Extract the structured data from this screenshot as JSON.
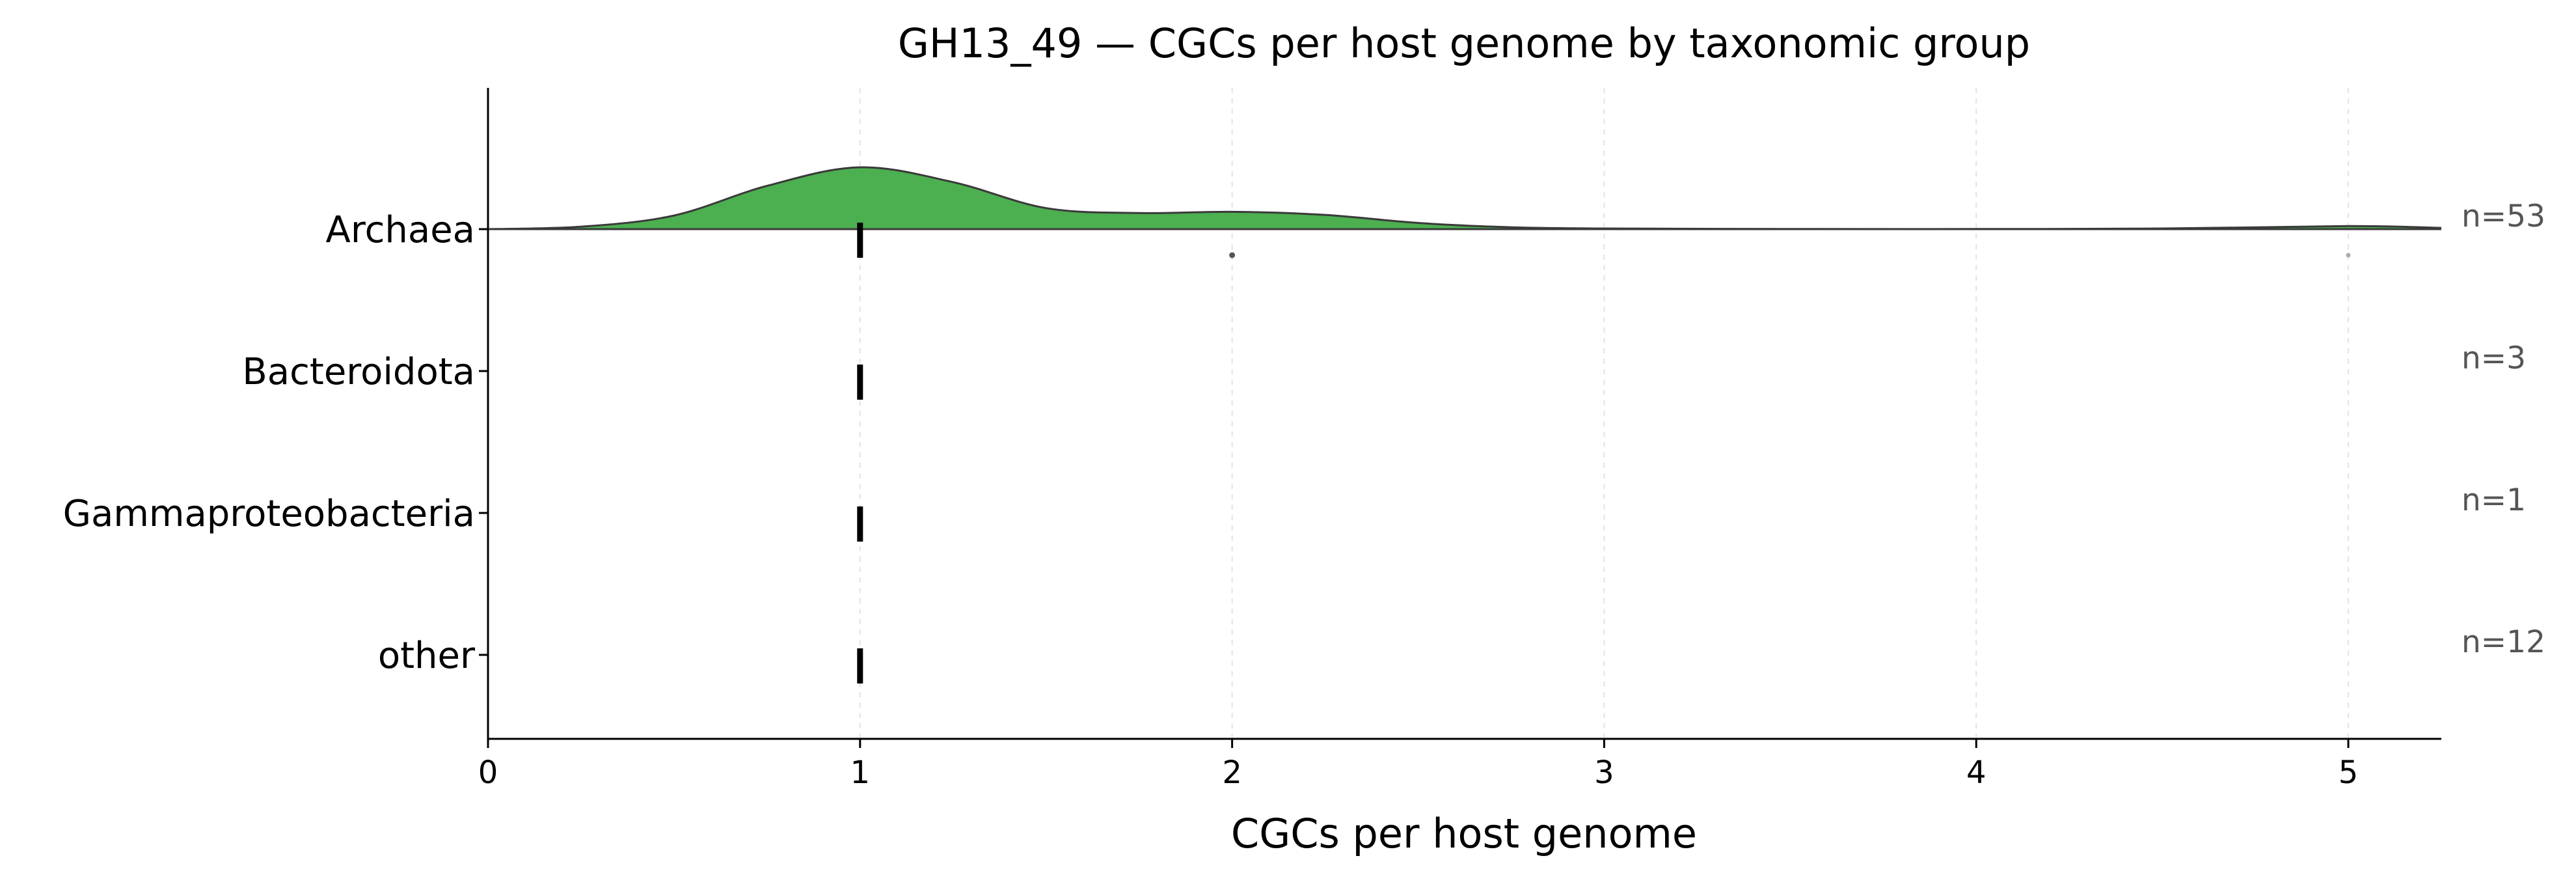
{
  "chart_data": {
    "type": "ridgeline",
    "title": "GH13_49 — CGCs per host genome by taxonomic group",
    "xlabel": "CGCs per host genome",
    "ylabel": "",
    "xlim": [
      0,
      5.25
    ],
    "xticks": [
      "0",
      "1",
      "2",
      "3",
      "4",
      "5"
    ],
    "grid": "vertical dashed",
    "groups": [
      {
        "name": "Archaea",
        "n_label": "n=53",
        "color": "#4caf50",
        "median": 1,
        "outliers": [
          2,
          5
        ],
        "density": {
          "x": [
            0,
            0.25,
            0.5,
            0.75,
            1,
            1.25,
            1.5,
            1.75,
            2,
            2.25,
            2.5,
            2.75,
            3,
            3.5,
            4,
            4.5,
            5,
            5.25
          ],
          "y": [
            0,
            0.04,
            0.22,
            0.7,
            1.0,
            0.76,
            0.34,
            0.26,
            0.28,
            0.23,
            0.1,
            0.03,
            0.01,
            0.003,
            0.002,
            0.01,
            0.05,
            0.02
          ]
        }
      },
      {
        "name": "Bacteroidota",
        "n_label": "n=3",
        "median": 1
      },
      {
        "name": "Gammaproteobacteria",
        "n_label": "n=1",
        "median": 1
      },
      {
        "name": "other",
        "n_label": "n=12",
        "median": 1
      }
    ]
  }
}
